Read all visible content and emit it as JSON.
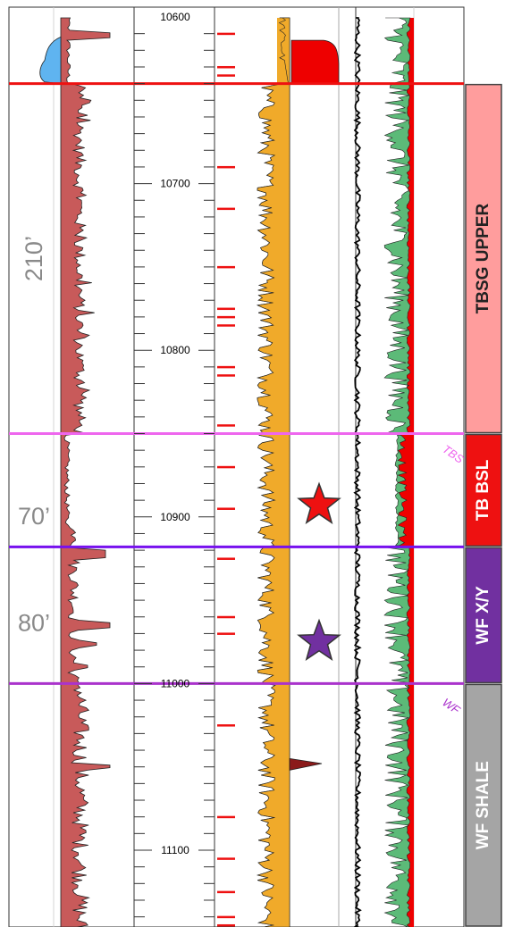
{
  "log": {
    "depth_start": 10590,
    "depth_end": 11150,
    "depth_ticks": [
      "10600",
      "10700",
      "10800",
      "10900",
      "11000",
      "11100"
    ],
    "tops": [
      {
        "id": "tbsg-upper-top",
        "depth": 10640,
        "color": "#ee1111"
      },
      {
        "id": "tb-bsl-top",
        "depth": 10850,
        "color": "#ee66ee"
      },
      {
        "id": "wf-xy-top",
        "depth": 10918,
        "color": "#7711ee"
      },
      {
        "id": "wf-shale-top",
        "depth": 11000,
        "color": "#aa33cc"
      }
    ],
    "zones": [
      {
        "label": "TBSG UPPER",
        "top": 10640,
        "base": 10850,
        "color": "#ff9d9d"
      },
      {
        "label": "TB BSL",
        "top": 10850,
        "base": 10918,
        "color": "#ee1111"
      },
      {
        "label": "WF X/Y",
        "top": 10918,
        "base": 11000,
        "color": "#7130a0"
      },
      {
        "label": "WF SHALE",
        "top": 11000,
        "base": 11150,
        "color": "#a5a5a5"
      }
    ],
    "thickness_labels": [
      {
        "text": "210’",
        "depth": 10745
      },
      {
        "text": "70’",
        "depth": 10899
      },
      {
        "text": "80’",
        "depth": 10963
      }
    ],
    "stars": [
      {
        "name": "red-star",
        "depth": 10893,
        "color": "#ee1111"
      },
      {
        "name": "purple-star",
        "depth": 10975,
        "color": "#7130a0"
      }
    ],
    "partial_tags": [
      {
        "text": "TBS",
        "color": "#ee66ee",
        "depth": 10855
      },
      {
        "text": "WF",
        "color": "#aa33cc",
        "depth": 11007
      }
    ],
    "colors": {
      "gamma_fill": "#c85a5a",
      "sp_fill": "#5fb4f0",
      "orange_fill": "#f0aa2a",
      "red_fill": "#ee0000",
      "green_fill": "#5cba78"
    }
  }
}
